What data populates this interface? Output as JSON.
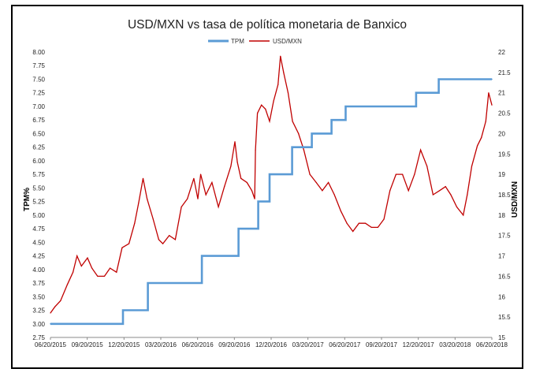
{
  "chart_data": {
    "type": "line",
    "title": "USD/MXN vs tasa de política monetaria de Banxico",
    "y_left_label": "TPM%",
    "y_right_label": "USD/MXN",
    "x_ticks": [
      "06/20/2015",
      "09/20/2015",
      "12/20/2015",
      "03/20/2016",
      "06/20/2016",
      "09/20/2016",
      "12/20/2016",
      "03/20/2017",
      "06/20/2017",
      "09/20/2017",
      "12/20/2017",
      "03/20/2018",
      "06/20/2018"
    ],
    "y_left_ticks": [
      "2.75",
      "3.00",
      "3.25",
      "3.50",
      "3.75",
      "4.00",
      "4.25",
      "4.50",
      "4.75",
      "5.00",
      "5.25",
      "5.50",
      "5.75",
      "6.00",
      "6.25",
      "6.50",
      "6.75",
      "7.00",
      "7.25",
      "7.50",
      "7.75",
      "8.00"
    ],
    "y_right_ticks": [
      "15",
      "15.5",
      "16",
      "16.5",
      "17",
      "17.5",
      "18",
      "18.5",
      "19",
      "19.5",
      "20",
      "20.5",
      "21",
      "21.5",
      "22"
    ],
    "ylim_left": [
      2.75,
      8.0
    ],
    "ylim_right": [
      15,
      22
    ],
    "grid": false,
    "legend_position": "top",
    "series": [
      {
        "name": "TPM",
        "axis": "left",
        "color": "#5B9BD5",
        "step": true,
        "x": [
          "2015-06-20",
          "2015-12-17",
          "2016-02-17",
          "2016-06-30",
          "2016-09-29",
          "2016-11-17",
          "2016-12-15",
          "2017-02-09",
          "2017-03-30",
          "2017-05-18",
          "2017-06-22",
          "2017-12-14",
          "2018-02-08",
          "2018-06-20"
        ],
        "values": [
          3.0,
          3.25,
          3.75,
          4.25,
          4.75,
          5.25,
          5.75,
          6.25,
          6.5,
          6.75,
          7.0,
          7.25,
          7.5,
          7.5
        ]
      },
      {
        "name": "USD/MXN",
        "axis": "right",
        "color": "#C00000",
        "step": false,
        "x": [
          "2015-06-20",
          "2015-07-01",
          "2015-07-15",
          "2015-08-01",
          "2015-08-15",
          "2015-08-25",
          "2015-09-05",
          "2015-09-20",
          "2015-10-01",
          "2015-10-15",
          "2015-11-01",
          "2015-11-15",
          "2015-12-01",
          "2015-12-15",
          "2016-01-01",
          "2016-01-15",
          "2016-01-25",
          "2016-02-05",
          "2016-02-15",
          "2016-03-01",
          "2016-03-15",
          "2016-03-25",
          "2016-04-10",
          "2016-04-25",
          "2016-05-10",
          "2016-05-25",
          "2016-06-10",
          "2016-06-20",
          "2016-06-27",
          "2016-07-10",
          "2016-07-25",
          "2016-08-10",
          "2016-08-25",
          "2016-09-10",
          "2016-09-20",
          "2016-09-26",
          "2016-10-05",
          "2016-10-20",
          "2016-11-01",
          "2016-11-08",
          "2016-11-10",
          "2016-11-15",
          "2016-11-25",
          "2016-12-05",
          "2016-12-15",
          "2016-12-25",
          "2017-01-05",
          "2017-01-11",
          "2017-01-19",
          "2017-01-30",
          "2017-02-10",
          "2017-02-25",
          "2017-03-10",
          "2017-03-25",
          "2017-04-10",
          "2017-04-25",
          "2017-05-10",
          "2017-05-25",
          "2017-06-10",
          "2017-06-25",
          "2017-07-10",
          "2017-07-25",
          "2017-08-10",
          "2017-08-25",
          "2017-09-10",
          "2017-09-25",
          "2017-10-10",
          "2017-10-25",
          "2017-11-10",
          "2017-11-25",
          "2017-12-10",
          "2017-12-25",
          "2018-01-10",
          "2018-01-25",
          "2018-02-10",
          "2018-02-25",
          "2018-03-10",
          "2018-03-25",
          "2018-04-10",
          "2018-04-20",
          "2018-05-01",
          "2018-05-15",
          "2018-05-25",
          "2018-06-05",
          "2018-06-12",
          "2018-06-20"
        ],
        "values": [
          15.6,
          15.75,
          15.9,
          16.3,
          16.6,
          17.0,
          16.75,
          16.95,
          16.7,
          16.5,
          16.5,
          16.7,
          16.6,
          17.2,
          17.3,
          17.8,
          18.3,
          18.9,
          18.4,
          17.9,
          17.4,
          17.3,
          17.5,
          17.4,
          18.2,
          18.4,
          18.9,
          18.4,
          19.0,
          18.5,
          18.8,
          18.2,
          18.7,
          19.2,
          19.8,
          19.3,
          18.9,
          18.8,
          18.6,
          18.4,
          19.6,
          20.5,
          20.7,
          20.6,
          20.3,
          20.8,
          21.2,
          21.9,
          21.5,
          21.0,
          20.3,
          20.0,
          19.6,
          19.0,
          18.8,
          18.6,
          18.8,
          18.5,
          18.1,
          17.8,
          17.6,
          17.8,
          17.8,
          17.7,
          17.7,
          17.9,
          18.6,
          19.0,
          19.0,
          18.6,
          19.0,
          19.6,
          19.2,
          18.5,
          18.6,
          18.7,
          18.5,
          18.2,
          18.0,
          18.5,
          19.2,
          19.7,
          19.9,
          20.3,
          21.0,
          20.7
        ]
      }
    ]
  }
}
